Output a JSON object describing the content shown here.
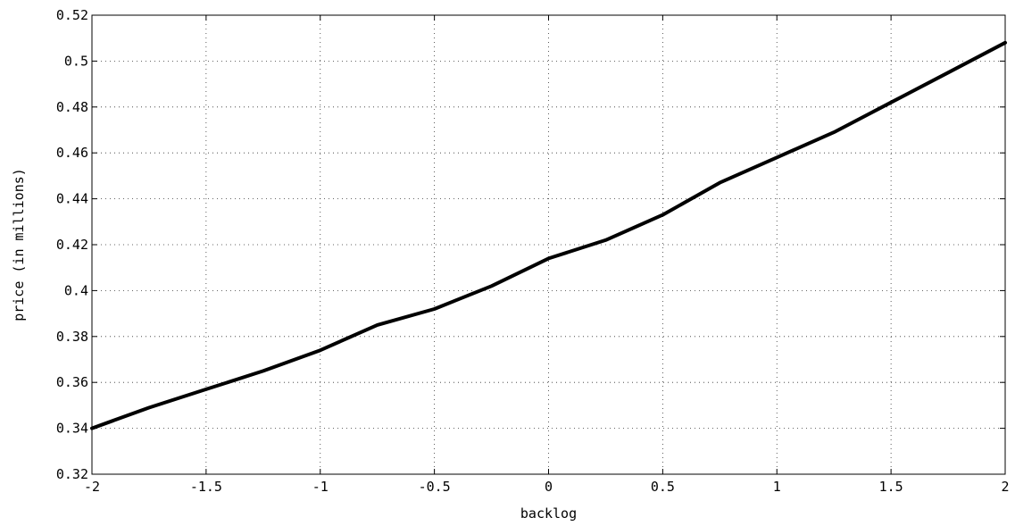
{
  "chart_data": {
    "type": "line",
    "title": "",
    "xlabel": "backlog",
    "ylabel": "price (in millions)",
    "xlim": [
      -2,
      2
    ],
    "ylim": [
      0.32,
      0.52
    ],
    "grid": true,
    "xticks": [
      -2,
      -1.5,
      -1,
      -0.5,
      0,
      0.5,
      1,
      1.5,
      2
    ],
    "xtick_labels": [
      "-2",
      "-1.5",
      "-1",
      "-0.5",
      "0",
      "0.5",
      "1",
      "1.5",
      "2"
    ],
    "yticks": [
      0.32,
      0.34,
      0.36,
      0.38,
      0.4,
      0.42,
      0.44,
      0.46,
      0.48,
      0.5,
      0.52
    ],
    "ytick_labels": [
      "0.32",
      "0.34",
      "0.36",
      "0.38",
      "0.4",
      "0.42",
      "0.44",
      "0.46",
      "0.48",
      "0.5",
      "0.52"
    ],
    "series": [
      {
        "color": "#000000",
        "x": [
          -2,
          -1.75,
          -1.5,
          -1.25,
          -1,
          -0.75,
          -0.5,
          -0.25,
          0,
          0.25,
          0.5,
          0.75,
          1,
          1.25,
          1.5,
          1.75,
          2
        ],
        "y": [
          0.34,
          0.349,
          0.357,
          0.365,
          0.374,
          0.385,
          0.392,
          0.402,
          0.414,
          0.422,
          0.433,
          0.447,
          0.458,
          0.469,
          0.482,
          0.495,
          0.508
        ]
      }
    ]
  }
}
